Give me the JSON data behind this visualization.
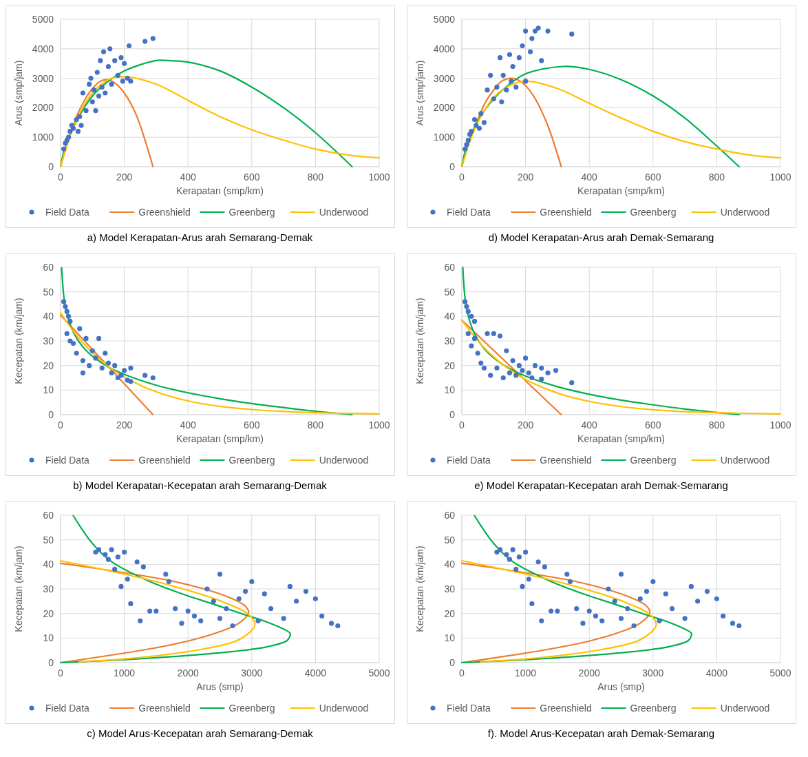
{
  "chart_data": [
    {
      "type": "scatter",
      "title": "a) Model Kerapatan-Arus arah Semarang-Demak",
      "xlabel": "Kerapatan (smp/km)",
      "ylabel": "Arus (smp/jam)",
      "xlim": [
        0,
        1000
      ],
      "xticks": [
        0,
        200,
        400,
        600,
        800,
        1000
      ],
      "ylim": [
        0,
        5000
      ],
      "yticks": [
        0,
        1000,
        2000,
        3000,
        4000,
        5000
      ],
      "grid": true,
      "legend": "bottom",
      "series": [
        {
          "name": "Field Data",
          "type": "scatter",
          "marker": "circle",
          "color": "#4472c4",
          "x": [
            10,
            15,
            20,
            25,
            30,
            35,
            40,
            50,
            55,
            60,
            65,
            70,
            80,
            90,
            95,
            100,
            105,
            110,
            115,
            120,
            125,
            130,
            135,
            140,
            150,
            155,
            160,
            170,
            180,
            190,
            195,
            200,
            210,
            215,
            220,
            265,
            290
          ],
          "values": [
            600,
            800,
            900,
            1000,
            1200,
            1400,
            1300,
            1600,
            1200,
            1700,
            1400,
            2500,
            1900,
            2800,
            3000,
            2200,
            2600,
            1900,
            3200,
            2400,
            3600,
            2700,
            3900,
            2500,
            3400,
            4000,
            2800,
            3600,
            3100,
            3700,
            2900,
            3500,
            3000,
            4100,
            2900,
            4250,
            4350
          ]
        },
        {
          "name": "Greenshield",
          "type": "line",
          "color": "#ed7d31",
          "x": [
            0,
            25,
            50,
            75,
            100,
            125,
            150,
            175,
            200,
            225,
            250,
            290
          ],
          "values": [
            0,
            900,
            1700,
            2250,
            2650,
            2900,
            2950,
            2800,
            2500,
            2050,
            1400,
            0
          ]
        },
        {
          "name": "Greenberg",
          "type": "line",
          "color": "#00b050",
          "x": [
            0,
            10,
            25,
            50,
            100,
            150,
            200,
            300,
            335,
            400,
            500,
            600,
            700,
            800,
            915
          ],
          "values": [
            0,
            500,
            950,
            1550,
            2400,
            2900,
            3250,
            3600,
            3600,
            3550,
            3250,
            2700,
            2000,
            1150,
            0
          ]
        },
        {
          "name": "Underwood",
          "type": "line",
          "color": "#ffc000",
          "x": [
            0,
            25,
            50,
            100,
            150,
            200,
            300,
            400,
            500,
            600,
            700,
            800,
            900,
            1000
          ],
          "values": [
            0,
            900,
            1600,
            2500,
            2950,
            3050,
            2800,
            2250,
            1700,
            1250,
            900,
            600,
            400,
            300
          ]
        }
      ]
    },
    {
      "type": "scatter",
      "title": "d) Model Kerapatan-Arus arah Demak-Semarang",
      "xlabel": "Kerapatan (smp/km)",
      "ylabel": "Arus (smp/jam)",
      "xlim": [
        0,
        1000
      ],
      "xticks": [
        0,
        200,
        400,
        600,
        800,
        1000
      ],
      "ylim": [
        0,
        5000
      ],
      "yticks": [
        0,
        1000,
        2000,
        3000,
        4000,
        5000
      ],
      "grid": true,
      "legend": "bottom",
      "series": [
        {
          "name": "Field Data",
          "type": "scatter",
          "marker": "circle",
          "color": "#4472c4",
          "x": [
            10,
            15,
            20,
            25,
            30,
            40,
            45,
            55,
            60,
            70,
            80,
            90,
            100,
            110,
            120,
            125,
            130,
            140,
            150,
            155,
            160,
            170,
            180,
            190,
            200,
            200,
            215,
            220,
            230,
            240,
            250,
            270,
            345
          ],
          "values": [
            600,
            750,
            900,
            1100,
            1200,
            1600,
            1400,
            1300,
            1800,
            1500,
            2600,
            3100,
            2300,
            2700,
            3700,
            2200,
            3100,
            2600,
            3800,
            2900,
            3400,
            2700,
            3700,
            4100,
            2900,
            4600,
            3900,
            4350,
            4600,
            4700,
            3600,
            4600,
            4500
          ]
        },
        {
          "name": "Greenshield",
          "type": "line",
          "color": "#ed7d31",
          "x": [
            0,
            25,
            50,
            75,
            100,
            125,
            156,
            175,
            200,
            225,
            250,
            275,
            312
          ],
          "values": [
            0,
            900,
            1600,
            2200,
            2600,
            2900,
            3000,
            2950,
            2750,
            2400,
            1900,
            1250,
            0
          ]
        },
        {
          "name": "Greenberg",
          "type": "line",
          "color": "#00b050",
          "x": [
            0,
            10,
            25,
            50,
            100,
            150,
            200,
            320,
            400,
            500,
            600,
            700,
            800,
            870
          ],
          "values": [
            0,
            500,
            950,
            1550,
            2300,
            2800,
            3150,
            3400,
            3300,
            2950,
            2400,
            1650,
            700,
            0
          ]
        },
        {
          "name": "Underwood",
          "type": "line",
          "color": "#ffc000",
          "x": [
            0,
            25,
            50,
            100,
            150,
            203,
            300,
            400,
            500,
            600,
            700,
            800,
            900,
            1000
          ],
          "values": [
            0,
            850,
            1500,
            2350,
            2750,
            2900,
            2650,
            2150,
            1650,
            1200,
            850,
            600,
            400,
            300
          ]
        }
      ]
    },
    {
      "type": "scatter",
      "title": "b) Model Kerapatan-Kecepatan arah Semarang-Demak",
      "xlabel": "Kerapatan (smp/km)",
      "ylabel": "Kecepatan (km/jam)",
      "xlim": [
        0,
        1000
      ],
      "xticks": [
        0,
        200,
        400,
        600,
        800,
        1000
      ],
      "ylim": [
        0,
        60
      ],
      "yticks": [
        0,
        10,
        20,
        30,
        40,
        50,
        60
      ],
      "grid": true,
      "legend": "bottom",
      "series": [
        {
          "name": "Field Data",
          "type": "scatter",
          "marker": "circle",
          "color": "#4472c4",
          "x": [
            10,
            15,
            20,
            25,
            30,
            20,
            30,
            40,
            50,
            60,
            70,
            70,
            80,
            90,
            100,
            110,
            120,
            130,
            140,
            150,
            160,
            170,
            180,
            190,
            200,
            210,
            220,
            220,
            265,
            290
          ],
          "values": [
            46,
            44,
            42,
            40,
            38,
            33,
            30,
            29,
            25,
            35,
            17,
            22,
            31,
            20,
            26,
            23,
            31,
            19,
            25,
            21,
            17,
            20,
            15,
            16,
            18,
            14,
            19,
            13.5,
            16,
            15
          ]
        },
        {
          "name": "Greenshield",
          "type": "line",
          "color": "#ed7d31",
          "x": [
            0,
            290
          ],
          "values": [
            40.5,
            0
          ]
        },
        {
          "name": "Greenberg",
          "type": "line",
          "color": "#00b050",
          "x": [
            3.5,
            10,
            20,
            40,
            70,
            100,
            150,
            200,
            300,
            400,
            500,
            600,
            700,
            800,
            915
          ],
          "values": [
            59.8,
            48.5,
            41.1,
            33.6,
            27.6,
            23.8,
            19.4,
            16.4,
            12,
            8.9,
            6.5,
            4.5,
            2.9,
            1.4,
            0
          ]
        },
        {
          "name": "Underwood",
          "type": "line",
          "color": "#ffc000",
          "x": [
            0,
            50,
            100,
            150,
            200,
            300,
            400,
            500,
            600,
            700,
            800,
            1000
          ],
          "values": [
            41.5,
            32.3,
            25.2,
            19.6,
            15.3,
            9.3,
            5.6,
            3.4,
            2.1,
            1.3,
            0.8,
            0.3
          ]
        }
      ]
    },
    {
      "type": "scatter",
      "title": "e) Model Kerapatan-Kecepatan arah Demak-Semarang",
      "xlabel": "Kerapatan (smp/km)",
      "ylabel": "Kecepatan (km/jam)",
      "xlim": [
        0,
        1000
      ],
      "xticks": [
        0,
        200,
        400,
        600,
        800,
        1000
      ],
      "ylim": [
        0,
        60
      ],
      "yticks": [
        0,
        10,
        20,
        30,
        40,
        50,
        60
      ],
      "grid": true,
      "legend": "bottom",
      "series": [
        {
          "name": "Field Data",
          "type": "scatter",
          "marker": "circle",
          "color": "#4472c4",
          "x": [
            10,
            15,
            20,
            30,
            40,
            20,
            30,
            40,
            50,
            60,
            70,
            80,
            90,
            100,
            110,
            120,
            130,
            140,
            150,
            160,
            170,
            180,
            190,
            200,
            210,
            220,
            230,
            250,
            250,
            270,
            295,
            345
          ],
          "values": [
            46,
            44,
            42,
            40,
            38,
            33,
            28,
            31,
            25,
            21,
            19,
            33,
            16,
            33,
            19,
            32,
            15,
            26,
            17,
            22,
            16,
            20,
            18,
            23,
            17,
            15,
            20,
            19,
            14.5,
            17,
            18,
            13
          ]
        },
        {
          "name": "Greenshield",
          "type": "line",
          "color": "#ed7d31",
          "x": [
            0,
            312
          ],
          "values": [
            38.5,
            0
          ]
        },
        {
          "name": "Greenberg",
          "type": "line",
          "color": "#00b050",
          "x": [
            3.2,
            10,
            20,
            40,
            70,
            100,
            150,
            200,
            300,
            400,
            500,
            600,
            700,
            800,
            870
          ],
          "values": [
            59.9,
            47.7,
            40.3,
            32.9,
            26.9,
            23.1,
            18.8,
            15.7,
            11.4,
            8.3,
            5.9,
            4,
            2.3,
            0.9,
            0
          ]
        },
        {
          "name": "Underwood",
          "type": "line",
          "color": "#ffc000",
          "x": [
            0,
            50,
            100,
            150,
            200,
            300,
            400,
            500,
            600,
            700,
            800,
            1000
          ],
          "values": [
            38.5,
            30.1,
            23.5,
            18.4,
            14.3,
            8.8,
            5.4,
            3.3,
            2,
            1.2,
            0.8,
            0.3
          ]
        }
      ]
    },
    {
      "type": "scatter",
      "title": "c) Model Arus-Kecepatan arah Semarang-Demak",
      "xlabel": "Arus (smp)",
      "ylabel": "Kecepatan (km/jam)",
      "xlim": [
        0,
        5000
      ],
      "xticks": [
        0,
        1000,
        2000,
        3000,
        4000,
        5000
      ],
      "ylim": [
        0,
        60
      ],
      "yticks": [
        0,
        10,
        20,
        30,
        40,
        50,
        60
      ],
      "grid": true,
      "legend": "bottom",
      "series": [
        {
          "name": "Field Data",
          "type": "scatter",
          "marker": "circle",
          "color": "#4472c4",
          "x": [
            550,
            600,
            700,
            750,
            800,
            850,
            900,
            950,
            1000,
            1050,
            1100,
            1200,
            1250,
            1300,
            1400,
            1500,
            1650,
            1700,
            1800,
            1900,
            2000,
            2100,
            2200,
            2300,
            2400,
            2500,
            2500,
            2600,
            2700,
            2800,
            2900,
            3000,
            3100,
            3200,
            3300,
            3500,
            3600,
            3700,
            3850,
            4000,
            4100,
            4250,
            4350
          ],
          "values": [
            45,
            46,
            44,
            42,
            46,
            38,
            43,
            31,
            45,
            34,
            24,
            41,
            17,
            39,
            21,
            21,
            36,
            33,
            22,
            16,
            21,
            19,
            17,
            30,
            25,
            36,
            18,
            22,
            15,
            26,
            29,
            33,
            17,
            28,
            22,
            18,
            31,
            25,
            29,
            26,
            19,
            16,
            15
          ]
        },
        {
          "name": "Greenshield",
          "type": "line",
          "color": "#ed7d31",
          "x": [
            0,
            900,
            1700,
            2250,
            2650,
            2900,
            2950,
            2800,
            2500,
            2050,
            1400,
            0
          ],
          "values": [
            40.5,
            37,
            33.5,
            30,
            26.5,
            23,
            20.3,
            16.1,
            12.6,
            9.1,
            5.6,
            0
          ]
        },
        {
          "name": "Greenberg",
          "type": "line",
          "color": "#00b050",
          "x": [
            200,
            500,
            800,
            1350,
            1950,
            2400,
            2900,
            3250,
            3600,
            3600,
            3550,
            3250,
            2700,
            2000,
            1150,
            0
          ],
          "values": [
            59.8,
            48.5,
            41.1,
            33.6,
            27.6,
            23.8,
            19.4,
            16.4,
            12,
            10.8,
            8.9,
            6.5,
            4.5,
            2.9,
            1.4,
            0
          ]
        },
        {
          "name": "Underwood",
          "type": "line",
          "color": "#ffc000",
          "x": [
            0,
            900,
            1600,
            2500,
            2950,
            3050,
            2800,
            2250,
            1700,
            1250,
            900,
            600,
            400,
            300
          ],
          "values": [
            41.5,
            36.6,
            32.3,
            25.2,
            19.6,
            15.3,
            9.3,
            5.6,
            3.4,
            2.1,
            1.3,
            0.8,
            0.5,
            0.3
          ]
        }
      ]
    },
    {
      "type": "scatter",
      "title": "f). Model Arus-Kecepatan arah Demak-Semarang",
      "xlabel": "Arus (smp)",
      "ylabel": "Kecepatan (km/jam)",
      "xlim": [
        0,
        5000
      ],
      "xticks": [
        0,
        1000,
        2000,
        3000,
        4000,
        5000
      ],
      "ylim": [
        0,
        60
      ],
      "yticks": [
        0,
        10,
        20,
        30,
        40,
        50,
        60
      ],
      "grid": true,
      "legend": "bottom",
      "series": [
        {
          "name": "Field Data",
          "type": "scatter",
          "marker": "circle",
          "color": "#4472c4",
          "x": [
            550,
            600,
            700,
            750,
            800,
            850,
            900,
            950,
            1000,
            1050,
            1100,
            1200,
            1250,
            1300,
            1400,
            1500,
            1650,
            1700,
            1800,
            1900,
            2000,
            2100,
            2200,
            2300,
            2400,
            2500,
            2500,
            2600,
            2700,
            2800,
            2900,
            3000,
            3100,
            3200,
            3300,
            3500,
            3600,
            3700,
            3850,
            4000,
            4100,
            4250,
            4350
          ],
          "values": [
            45,
            46,
            44,
            42,
            46,
            38,
            43,
            31,
            45,
            34,
            24,
            41,
            17,
            39,
            21,
            21,
            36,
            33,
            22,
            16,
            21,
            19,
            17,
            30,
            25,
            36,
            18,
            22,
            15,
            26,
            29,
            33,
            17,
            28,
            22,
            18,
            31,
            25,
            29,
            26,
            19,
            16,
            15
          ]
        },
        {
          "name": "Greenshield",
          "type": "line",
          "color": "#ed7d31",
          "x": [
            0,
            900,
            1700,
            2250,
            2650,
            2900,
            2950,
            2800,
            2500,
            2050,
            1400,
            0
          ],
          "values": [
            40.5,
            37,
            33.5,
            30,
            26.5,
            23,
            20.3,
            16.1,
            12.6,
            9.1,
            5.6,
            0
          ]
        },
        {
          "name": "Greenberg",
          "type": "line",
          "color": "#00b050",
          "x": [
            200,
            500,
            800,
            1350,
            1950,
            2400,
            2900,
            3250,
            3600,
            3600,
            3550,
            3250,
            2700,
            2000,
            1150,
            0
          ],
          "values": [
            59.8,
            48.5,
            41.1,
            33.6,
            27.6,
            23.8,
            19.4,
            16.4,
            12,
            10.8,
            8.9,
            6.5,
            4.5,
            2.9,
            1.4,
            0
          ]
        },
        {
          "name": "Underwood",
          "type": "line",
          "color": "#ffc000",
          "x": [
            0,
            900,
            1600,
            2500,
            2950,
            3050,
            2800,
            2250,
            1700,
            1250,
            900,
            600,
            400,
            300
          ],
          "values": [
            41.5,
            36.6,
            32.3,
            25.2,
            19.6,
            15.3,
            9.3,
            5.6,
            3.4,
            2.1,
            1.3,
            0.8,
            0.5,
            0.3
          ]
        }
      ]
    }
  ]
}
